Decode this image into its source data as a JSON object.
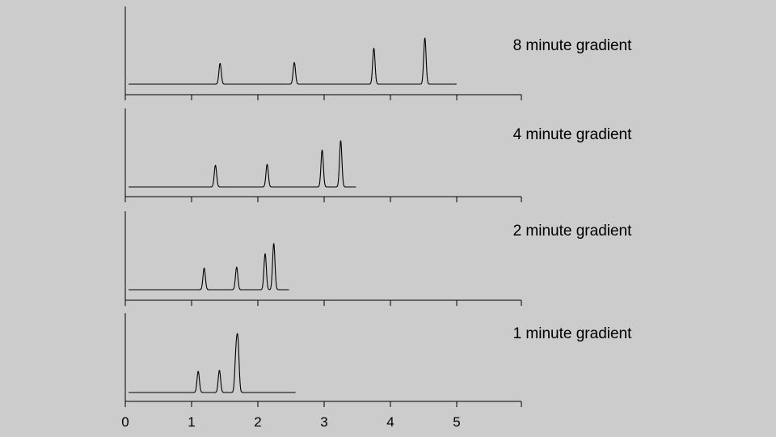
{
  "chart_data": {
    "type": "line",
    "xlim": [
      0,
      6
    ],
    "x_ticks": [
      0,
      1,
      2,
      3,
      4,
      5
    ],
    "x_tick_labels": [
      "0",
      "1",
      "2",
      "3",
      "4",
      "5"
    ],
    "grid": false,
    "line_color": "#000000",
    "background_color": "#cccccc",
    "panels": [
      {
        "label": "8 minute gradient",
        "run_range": [
          0.05,
          5.0
        ],
        "peaks": [
          {
            "x": 1.43,
            "height": 0.45
          },
          {
            "x": 2.55,
            "height": 0.47
          },
          {
            "x": 3.75,
            "height": 0.78
          },
          {
            "x": 4.52,
            "height": 1.0
          }
        ]
      },
      {
        "label": "4 minute gradient",
        "run_range": [
          0.05,
          3.48
        ],
        "peaks": [
          {
            "x": 1.36,
            "height": 0.47
          },
          {
            "x": 2.14,
            "height": 0.49
          },
          {
            "x": 2.97,
            "height": 0.8
          },
          {
            "x": 3.25,
            "height": 1.0
          }
        ]
      },
      {
        "label": "2 minute gradient",
        "run_range": [
          0.05,
          2.47
        ],
        "peaks": [
          {
            "x": 1.19,
            "height": 0.47
          },
          {
            "x": 1.68,
            "height": 0.49
          },
          {
            "x": 2.11,
            "height": 0.78
          },
          {
            "x": 2.24,
            "height": 1.0
          }
        ]
      },
      {
        "label": "1 minute gradient",
        "run_range": [
          0.05,
          2.57
        ],
        "peaks": [
          {
            "x": 1.1,
            "height": 0.46
          },
          {
            "x": 1.42,
            "height": 0.48
          },
          {
            "x": 1.67,
            "height": 0.78
          },
          {
            "x": 1.7,
            "height": 1.0
          }
        ]
      }
    ]
  }
}
